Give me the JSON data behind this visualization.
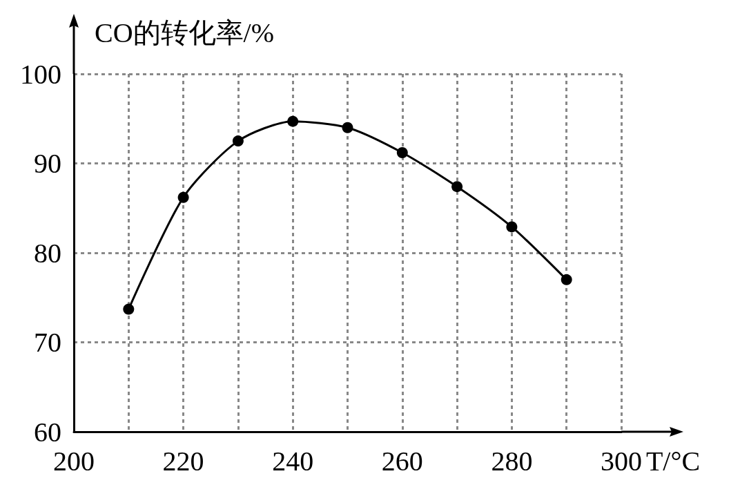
{
  "chart_data": {
    "type": "line",
    "xlabel": "T/°C",
    "ylabel": "CO的转化率/%",
    "x": [
      210,
      220,
      230,
      240,
      250,
      260,
      270,
      280,
      290
    ],
    "series": [
      {
        "color": "#000000",
        "values": [
          73.7,
          86.2,
          92.5,
          94.7,
          94.0,
          91.2,
          87.4,
          82.9,
          77.0
        ]
      }
    ],
    "xlim": [
      200,
      300
    ],
    "ylim": [
      60,
      100
    ],
    "xticks": [
      200,
      {
        "value": 210,
        "label": null
      },
      220,
      {
        "value": 230,
        "label": null
      },
      240,
      {
        "value": 250,
        "label": null
      },
      260,
      {
        "value": 270,
        "label": null
      },
      280,
      {
        "value": 290,
        "label": null
      },
      300
    ],
    "yticks": [
      60,
      70,
      80,
      90,
      100
    ],
    "grid": true,
    "marker": "circle",
    "line_style": "solid"
  }
}
